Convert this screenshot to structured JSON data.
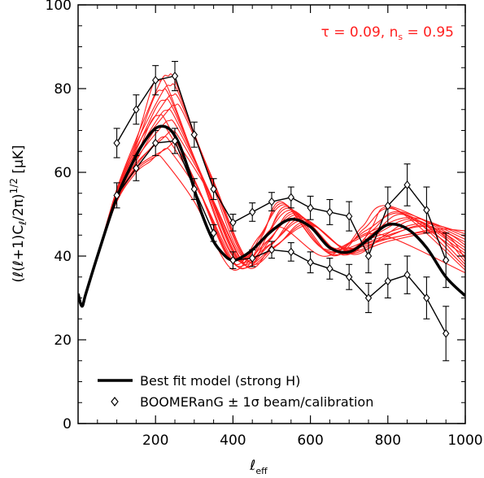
{
  "chart_data": {
    "type": "line",
    "xlabel": {
      "main": "ℓ",
      "sub": "eff"
    },
    "ylabel": "(ℓ(ℓ+1)C_ℓ/2π)^(1/2) [μK]",
    "xlim": [
      0,
      1000
    ],
    "ylim": [
      0,
      100
    ],
    "x_ticks": [
      "200",
      "400",
      "600",
      "800",
      "1000"
    ],
    "x_tick_values": [
      200,
      400,
      600,
      800,
      1000
    ],
    "y_ticks": [
      "0",
      "20",
      "40",
      "60",
      "80",
      "100"
    ],
    "y_tick_values": [
      0,
      20,
      40,
      60,
      80,
      100
    ],
    "annotation": {
      "text": "τ = 0.09, n_s = 0.95",
      "color": "#ff2020"
    },
    "legend": {
      "placement": "bottom-left",
      "entries": [
        {
          "label": "Best fit model (strong H)",
          "marker": "line"
        },
        {
          "label": "BOOMERanG ± 1σ beam/calibration",
          "marker": "diamond"
        }
      ]
    },
    "colors": {
      "models": "#ff2020",
      "best_fit": "#000000",
      "data": "#000000"
    },
    "best_fit": {
      "name": "Best fit model (strong H)",
      "x": [
        0,
        10,
        20,
        50,
        100,
        150,
        180,
        200,
        220,
        240,
        260,
        280,
        300,
        320,
        350,
        380,
        400,
        420,
        450,
        500,
        550,
        600,
        650,
        700,
        750,
        800,
        850,
        900,
        950,
        1000
      ],
      "y": [
        31,
        28,
        31,
        40,
        54,
        64,
        68.5,
        70.5,
        71,
        70,
        67,
        62,
        56,
        50,
        43.5,
        40,
        39,
        39.6,
        41.5,
        46,
        48.8,
        47,
        42,
        41,
        44,
        47.5,
        46.5,
        42,
        35,
        30.5
      ]
    },
    "models_range": {
      "count": 16,
      "peak1_amplitude": [
        64,
        83
      ],
      "peak1_position": [
        205,
        250
      ],
      "peak2_position": [
        520,
        600
      ],
      "peak3_position": [
        790,
        940
      ]
    },
    "series": [
      {
        "name": "BOOMERanG upper (+1σ)",
        "x": [
          100,
          150,
          200,
          250,
          300,
          350,
          400,
          450,
          500,
          550,
          600,
          650,
          700,
          750,
          800,
          850,
          900,
          950
        ],
        "y": [
          67,
          75,
          82,
          83,
          69,
          56,
          48,
          50.5,
          53,
          54,
          51.5,
          50.5,
          49.5,
          40,
          52,
          57,
          51,
          39
        ],
        "err": [
          3.5,
          3.5,
          3.5,
          3.5,
          3,
          2.5,
          2,
          2.2,
          2.2,
          2.5,
          2.8,
          3,
          3.5,
          4,
          4.5,
          5,
          5.5,
          6.5
        ]
      },
      {
        "name": "BOOMERanG central",
        "x": [
          100,
          150,
          200,
          250,
          300,
          350
        ],
        "y": [
          54.5,
          61,
          67,
          67.5,
          56,
          45.5
        ],
        "err": [
          3,
          3,
          3,
          3,
          2.5,
          2
        ]
      },
      {
        "name": "BOOMERanG lower (−1σ)",
        "x": [
          400,
          450,
          500,
          550,
          600,
          650,
          700,
          750,
          800,
          850,
          900,
          950
        ],
        "y": [
          39,
          39.5,
          41.5,
          41,
          38.5,
          37,
          35,
          30,
          34,
          35.5,
          30,
          21.5
        ],
        "err": [
          2,
          2,
          2,
          2.2,
          2.5,
          2.5,
          3,
          3.5,
          4,
          4.5,
          5,
          6.5
        ]
      }
    ]
  }
}
